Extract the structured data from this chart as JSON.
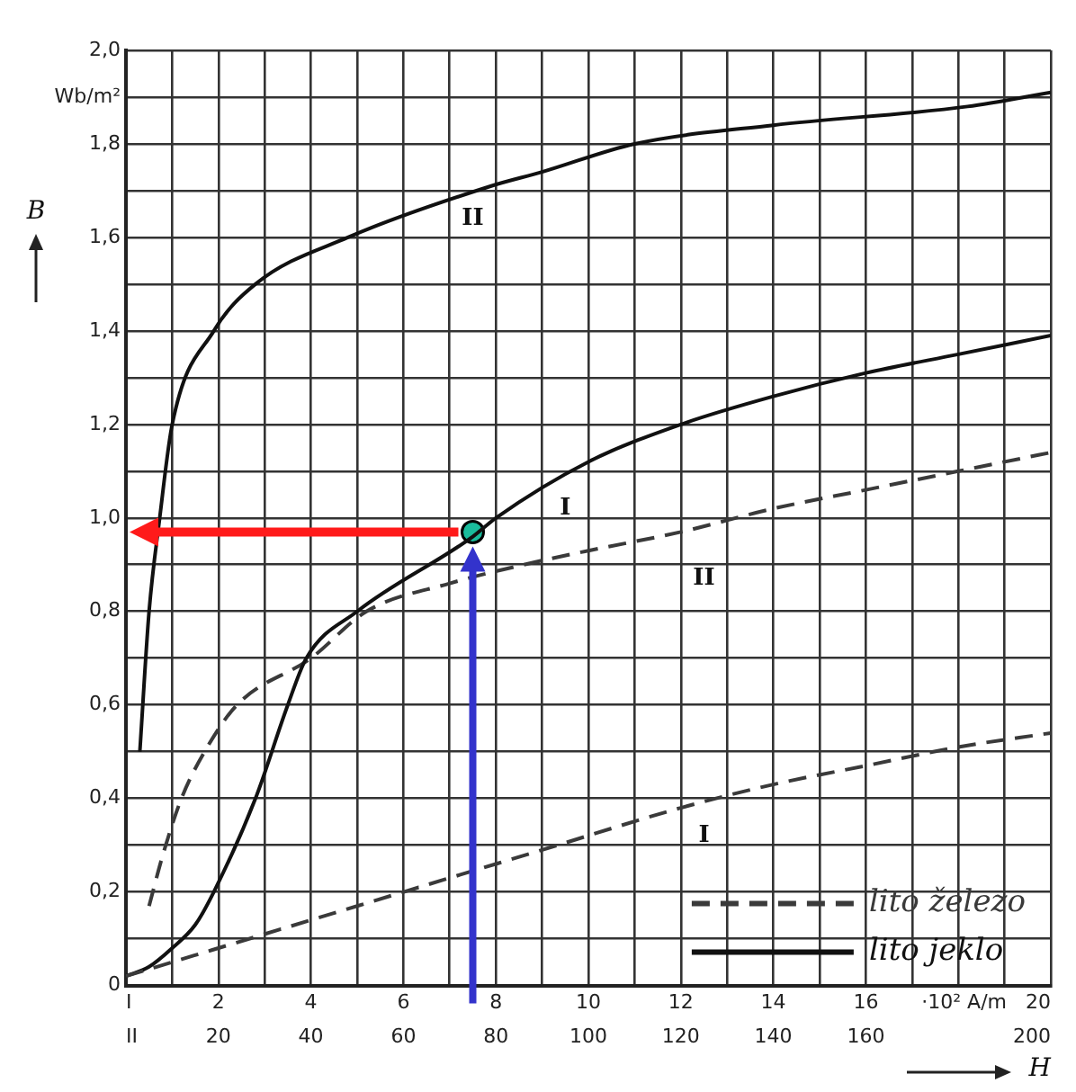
{
  "chart_data": {
    "type": "line",
    "xlabel": "H",
    "ylabel": "B",
    "xlim": [
      0,
      20
    ],
    "xticks": [
      {
        "value": 0,
        "label": "I"
      },
      {
        "value": 1,
        "label": null
      },
      {
        "value": 2,
        "label": "2"
      },
      {
        "value": 3,
        "label": null
      },
      {
        "value": 4,
        "label": "4"
      },
      {
        "value": 5,
        "label": null
      },
      {
        "value": 6,
        "label": "6"
      },
      {
        "value": 7,
        "label": null
      },
      {
        "value": 8,
        "label": "8"
      },
      {
        "value": 9,
        "label": null
      },
      {
        "value": 10,
        "label": "10"
      },
      {
        "value": 11,
        "label": null
      },
      {
        "value": 12,
        "label": "12"
      },
      {
        "value": 13,
        "label": null
      },
      {
        "value": 14,
        "label": "14"
      },
      {
        "value": 15,
        "label": null
      },
      {
        "value": 16,
        "label": "16"
      },
      {
        "value": 17,
        "label": null
      },
      {
        "value": 18,
        "label": null
      },
      {
        "value": 19,
        "label": null
      },
      {
        "value": 20,
        "label": "·10² A/m   20"
      }
    ],
    "x2lim": [
      0,
      200
    ],
    "x2ticks": [
      {
        "value": 0,
        "label": "II"
      },
      20,
      40,
      60,
      80,
      100,
      120,
      140,
      160,
      200
    ],
    "ylim": [
      0,
      2
    ],
    "yticks": [
      {
        "value": 0,
        "label": "0"
      },
      {
        "value": 0.1,
        "label": null
      },
      {
        "value": 0.2,
        "label": "0,2"
      },
      {
        "value": 0.3,
        "label": null
      },
      {
        "value": 0.4,
        "label": "0,4"
      },
      {
        "value": 0.5,
        "label": null
      },
      {
        "value": 0.6,
        "label": "0,6"
      },
      {
        "value": 0.7,
        "label": null
      },
      {
        "value": 0.8,
        "label": "0,8"
      },
      {
        "value": 0.9,
        "label": null
      },
      {
        "value": 1,
        "label": "1,0"
      },
      {
        "value": 1.1,
        "label": null
      },
      {
        "value": 1.2,
        "label": "1,2"
      },
      {
        "value": 1.3,
        "label": null
      },
      {
        "value": 1.4,
        "label": "1,4"
      },
      {
        "value": 1.5,
        "label": null
      },
      {
        "value": 1.6,
        "label": "1,6"
      },
      {
        "value": 1.7,
        "label": null
      },
      {
        "value": 1.8,
        "label": "1,8"
      },
      {
        "value": 1.9,
        "label": "Wb/m²"
      },
      {
        "value": 2,
        "label": "2,0"
      }
    ],
    "grid": true,
    "legend": "bottom right",
    "series": [
      {
        "name": "lito železo",
        "color": "#3a3a3a",
        "line_style": "dashed",
        "marker": "none",
        "x": [
          0,
          1,
          2,
          5,
          9,
          12,
          14,
          16,
          18,
          20
        ],
        "values": [
          0.02,
          0.05,
          0.08,
          0.17,
          0.29,
          0.38,
          0.43,
          0.47,
          0.51,
          0.54
        ]
      },
      {
        "name": "lito jeklo",
        "color": "#111111",
        "line_style": "solid",
        "marker": "none",
        "x": [
          0,
          0.5,
          1,
          1.5,
          1.9,
          2.8,
          3.5,
          3.9,
          5,
          7.5,
          8,
          10,
          12,
          14,
          16,
          18,
          20
        ],
        "values": [
          0.02,
          0.04,
          0.08,
          0.13,
          0.2,
          0.4,
          0.6,
          0.7,
          0.8,
          0.96,
          1,
          1.12,
          1.2,
          1.26,
          1.31,
          1.35,
          1.39
        ]
      },
      {
        "color": "#3a3a3a",
        "line_style": "dashed",
        "marker": "none",
        "axis": "x2",
        "x": [
          5,
          8,
          12,
          17,
          24,
          40,
          52,
          70,
          86,
          100,
          120,
          140,
          160,
          180,
          200
        ],
        "values": [
          0.17,
          0.28,
          0.4,
          0.5,
          0.6,
          0.7,
          0.8,
          0.86,
          0.9,
          0.93,
          0.97,
          1.02,
          1.06,
          1.1,
          1.14
        ]
      },
      {
        "color": "#111111",
        "line_style": "solid",
        "marker": "none",
        "axis": "x2",
        "x": [
          3,
          5,
          7.3,
          10,
          19,
          28,
          48,
          79,
          90,
          110,
          140,
          182,
          200
        ],
        "values": [
          0.5,
          0.8,
          1,
          1.2,
          1.4,
          1.5,
          1.6,
          1.71,
          1.74,
          1.8,
          1.84,
          1.88,
          1.91
        ]
      },
      {
        "type": "scatter",
        "color": "#1abc9c",
        "marker": "circle",
        "x": [
          7.5
        ],
        "values": [
          0.97
        ]
      }
    ],
    "annotations": [
      "II",
      "I",
      "II",
      "I"
    ]
  }
}
